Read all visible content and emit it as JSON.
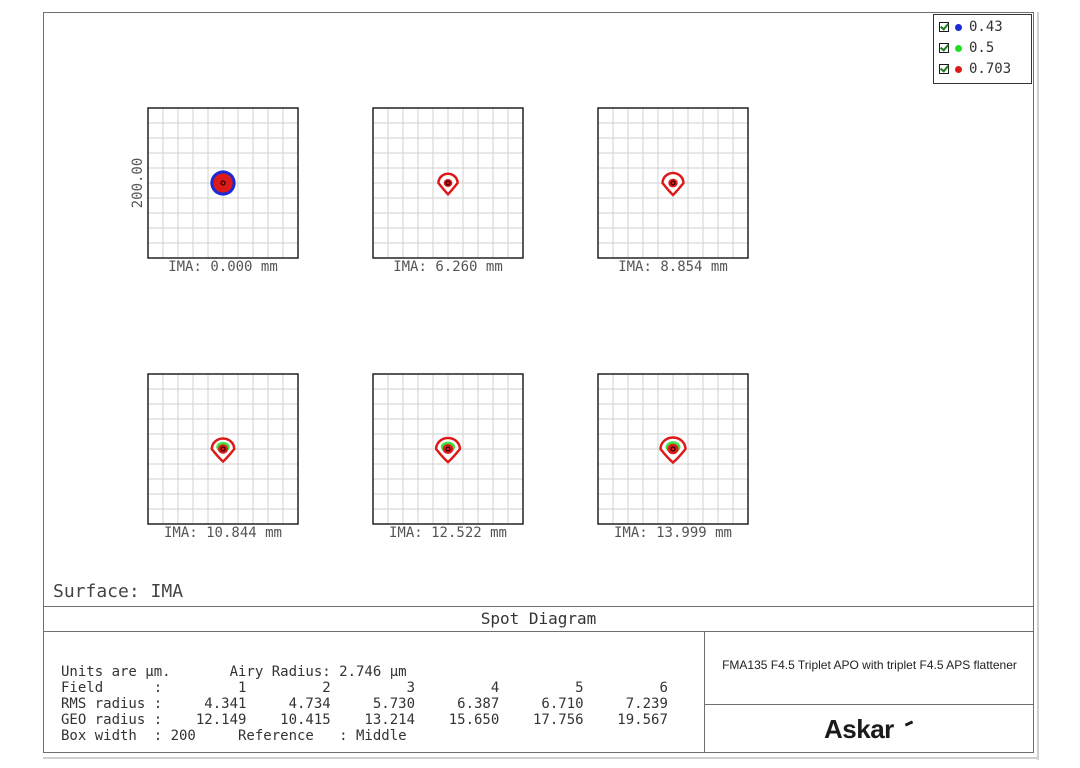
{
  "legend": [
    {
      "label": "0.43",
      "color": "#1a2bd8"
    },
    {
      "label": "0.5",
      "color": "#22dd22"
    },
    {
      "label": "0.703",
      "color": "#dd1a1a"
    }
  ],
  "surface_label": "Surface: IMA",
  "diagram_title": "Spot Diagram",
  "scale_label": "200.00",
  "info": {
    "units_line": "Units are µm.       Airy Radius: 2.746 µm",
    "field_line": "Field      :         1         2         3         4         5         6",
    "rms_line": "RMS radius :     4.341     4.734     5.730     6.387     6.710     7.239",
    "geo_line": "GEO radius :    12.149    10.415    13.214    15.650    17.756    19.567",
    "box_line": "Box width  : 200     Reference   : Middle"
  },
  "lens_description": "FMA135 F4.5 Triplet APO with triplet F4.5 APS flattener",
  "brand": "Askar",
  "chart_data": {
    "type": "scatter",
    "title": "Spot Diagram",
    "units": "µm",
    "airy_radius": 2.746,
    "box_width": 200,
    "reference": "Middle",
    "surface": "IMA",
    "wavelengths": [
      "0.43",
      "0.5",
      "0.703"
    ],
    "fields": [
      {
        "field": 1,
        "ima": "IMA: 0.000 mm",
        "rms_radius": 4.341,
        "geo_radius": 12.149
      },
      {
        "field": 2,
        "ima": "IMA: 6.260 mm",
        "rms_radius": 4.734,
        "geo_radius": 10.415
      },
      {
        "field": 3,
        "ima": "IMA: 8.854 mm",
        "rms_radius": 5.73,
        "geo_radius": 13.214
      },
      {
        "field": 4,
        "ima": "IMA: 10.844 mm",
        "rms_radius": 6.387,
        "geo_radius": 15.65
      },
      {
        "field": 5,
        "ima": "IMA: 12.522 mm",
        "rms_radius": 6.71,
        "geo_radius": 17.756
      },
      {
        "field": 6,
        "ima": "IMA: 13.999 mm",
        "rms_radius": 7.239,
        "geo_radius": 19.567
      }
    ]
  }
}
